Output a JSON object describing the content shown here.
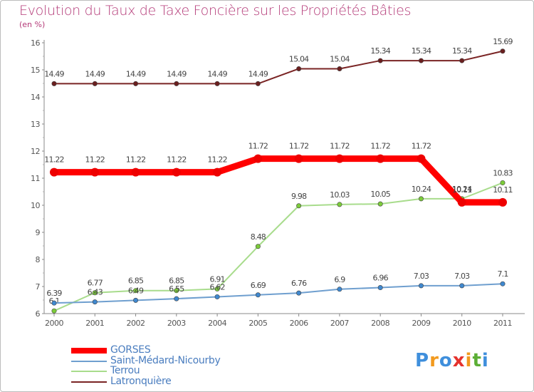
{
  "title": "Evolution du Taux de Taxe Foncière sur les Propriétés Bâties",
  "unit_label": "(en %)",
  "chart_data": {
    "type": "line",
    "title": "Evolution du Taux de Taxe Foncière sur les Propriétés Bâties",
    "ylabel": "(en %)",
    "xlabel": "",
    "ylim": [
      6,
      16
    ],
    "yticks": [
      "6",
      "7",
      "8",
      "9",
      "10",
      "11",
      "12",
      "13",
      "14",
      "15",
      "16"
    ],
    "x": [
      "2000",
      "2001",
      "2002",
      "2003",
      "2004",
      "2005",
      "2006",
      "2007",
      "2008",
      "2009",
      "2010",
      "2011"
    ],
    "grid": false,
    "series": [
      {
        "name": "Latronquière",
        "color": "#7a2424",
        "marker_color": "#6b1f1f",
        "width": "thin",
        "values": [
          14.49,
          14.49,
          14.49,
          14.49,
          14.49,
          14.49,
          15.04,
          15.04,
          15.34,
          15.34,
          15.34,
          15.69
        ],
        "labels": [
          "14.49",
          "14.49",
          "14.49",
          "14.49",
          "14.49",
          "14.49",
          "15.04",
          "15.04",
          "15.34",
          "15.34",
          "15.34",
          "15.69"
        ]
      },
      {
        "name": "Terrou",
        "color": "#a8dc8c",
        "marker_color": "#7ccc3a",
        "width": "thin",
        "values": [
          6.1,
          6.77,
          6.85,
          6.85,
          6.91,
          8.48,
          9.98,
          10.03,
          10.05,
          10.24,
          10.24,
          10.83
        ],
        "labels": [
          "6.1",
          "6.77",
          "6.85",
          "6.85",
          "6.91",
          "8.48",
          "9.98",
          "10.03",
          "10.05",
          "10.24",
          "10.24",
          "10.83"
        ]
      },
      {
        "name": "Saint-Médard-Nicourby",
        "color": "#6f9fcf",
        "marker_color": "#3f88cf",
        "width": "thin",
        "values": [
          6.39,
          6.43,
          6.49,
          6.55,
          6.62,
          6.69,
          6.76,
          6.9,
          6.96,
          7.03,
          7.03,
          7.1
        ],
        "labels": [
          "6.39",
          "6.43",
          "6.49",
          "6.55",
          "6.62",
          "6.69",
          "6.76",
          "6.9",
          "6.96",
          "7.03",
          "7.03",
          "7.1"
        ]
      },
      {
        "name": "GORSES",
        "color": "#ff0000",
        "marker_color": "#ee0000",
        "width": "thick",
        "values": [
          11.22,
          11.22,
          11.22,
          11.22,
          11.22,
          11.72,
          11.72,
          11.72,
          11.72,
          11.72,
          10.11,
          10.11
        ],
        "labels": [
          "11.22",
          "11.22",
          "11.22",
          "11.22",
          "11.22",
          "11.72",
          "11.72",
          "11.72",
          "11.72",
          "11.72",
          "10.11",
          "10.11"
        ]
      }
    ]
  },
  "legend": [
    {
      "name": "GORSES",
      "color": "#ff0000",
      "width": "thick"
    },
    {
      "name": "Saint-Médard-Nicourby",
      "color": "#6f9fcf",
      "width": "thin"
    },
    {
      "name": "Terrou",
      "color": "#a8dc8c",
      "width": "thin"
    },
    {
      "name": "Latronquière",
      "color": "#7a2424",
      "width": "thin"
    }
  ],
  "logo": {
    "text": "Proxiti",
    "letters": [
      "P",
      "r",
      "o",
      "x",
      "i",
      "t",
      "i"
    ],
    "colors": [
      "#3f8fdc",
      "#f29a1e",
      "#3f8fdc",
      "#e5322d",
      "#f29a1e",
      "#5cae35",
      "#3f8fdc"
    ]
  }
}
